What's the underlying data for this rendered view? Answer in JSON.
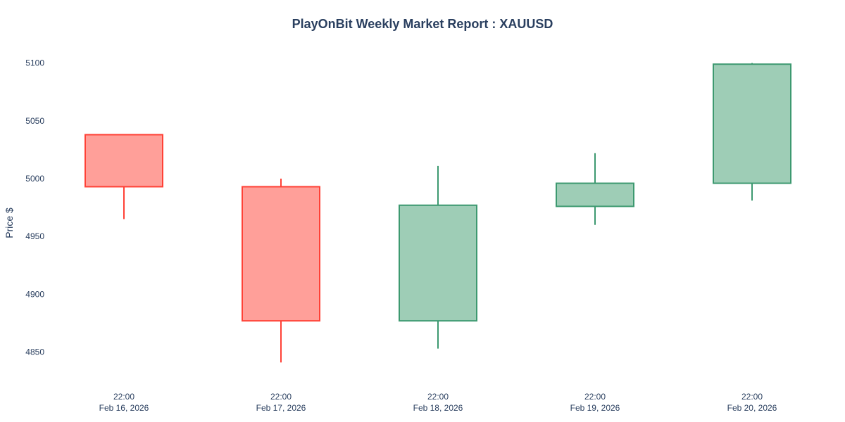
{
  "colors": {
    "text": "#2a3f5f",
    "increasing_fill": "#9ecdb6",
    "increasing_line": "#3d9970",
    "decreasing_fill": "#ff9f99",
    "decreasing_line": "#ff4136",
    "background": "#ffffff"
  },
  "chart_data": {
    "type": "candlestick",
    "title": "PlayOnBit Weekly Market Report : XAUUSD",
    "xlabel": "",
    "ylabel": "Price $",
    "ylim": [
      4826,
      5118
    ],
    "y_ticks": [
      4850,
      4900,
      4950,
      5000,
      5050,
      5100
    ],
    "grid": false,
    "categories": [
      {
        "time": "22:00",
        "date": "Feb 16, 2026"
      },
      {
        "time": "22:00",
        "date": "Feb 17, 2026"
      },
      {
        "time": "22:00",
        "date": "Feb 18, 2026"
      },
      {
        "time": "22:00",
        "date": "Feb 19, 2026"
      },
      {
        "time": "22:00",
        "date": "Feb 20, 2026"
      }
    ],
    "series": [
      {
        "name": "XAUUSD",
        "open": [
          5038,
          4993,
          4877,
          4976,
          4996
        ],
        "high": [
          5038,
          5000,
          5011,
          5022,
          5100
        ],
        "low": [
          4965,
          4841,
          4853,
          4960,
          4981
        ],
        "close": [
          4993,
          4877,
          4977,
          4996,
          5099
        ]
      }
    ]
  }
}
